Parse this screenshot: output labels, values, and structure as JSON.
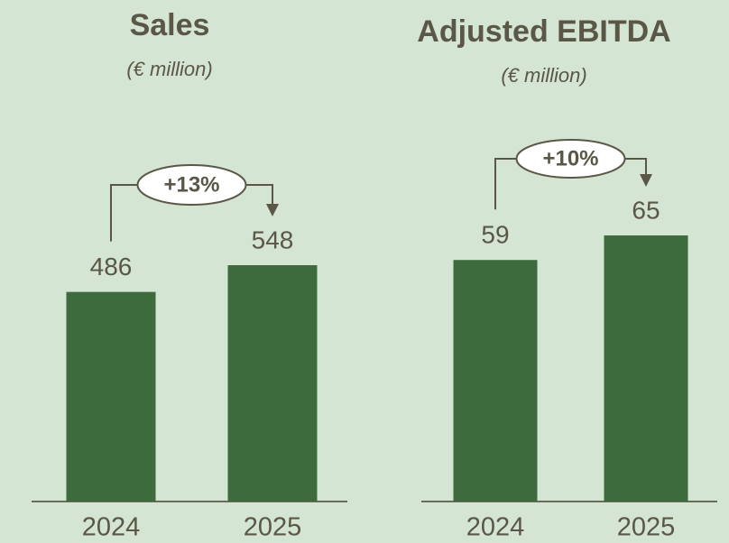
{
  "chart_data": [
    {
      "type": "bar",
      "title": "Sales",
      "subtitle": "(€ million)",
      "categories": [
        "2024",
        "2025"
      ],
      "values": [
        486,
        548
      ],
      "color": "#3d6b3e",
      "annotation": "+13%"
    },
    {
      "type": "bar",
      "title": "Adjusted EBITDA",
      "subtitle": "(€ million)",
      "categories": [
        "2024",
        "2025"
      ],
      "values": [
        59,
        65
      ],
      "color": "#3d6b3e",
      "annotation": "+10%"
    }
  ]
}
